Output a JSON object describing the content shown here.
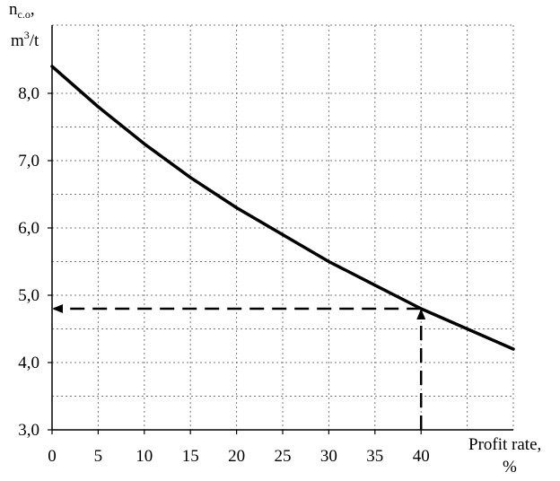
{
  "chart_data": {
    "type": "line",
    "ylabel_main": "n",
    "ylabel_sub": "c.o",
    "ylabel_comma": ",",
    "ylabel_unit_pre": "m",
    "ylabel_unit_sup": "3",
    "ylabel_unit_post": "/t",
    "xlabel_line1": "Profit rate,",
    "xlabel_line2": "%",
    "xlim": [
      0,
      50
    ],
    "ylim": [
      3.0,
      8.0
    ],
    "xticks": [
      0,
      5,
      10,
      15,
      20,
      25,
      30,
      35,
      40
    ],
    "xtick_labels": [
      "0",
      "5",
      "10",
      "15",
      "20",
      "25",
      "30",
      "35",
      "40"
    ],
    "yticks": [
      3.0,
      4.0,
      5.0,
      6.0,
      7.0,
      8.0
    ],
    "ytick_labels": [
      "3,0",
      "4,0",
      "5,0",
      "6,0",
      "7,0",
      "8,0"
    ],
    "grid": true,
    "series": [
      {
        "x": [
          0,
          5,
          10,
          15,
          20,
          25,
          30,
          35,
          40,
          45,
          50
        ],
        "y": [
          8.4,
          7.8,
          7.25,
          6.75,
          6.3,
          5.9,
          5.5,
          5.15,
          4.8,
          4.5,
          4.2
        ]
      }
    ],
    "annotation": {
      "x": 40,
      "y": 4.8,
      "style": "dashed",
      "arrows": [
        "to-y-axis",
        "to-x-axis"
      ]
    }
  }
}
